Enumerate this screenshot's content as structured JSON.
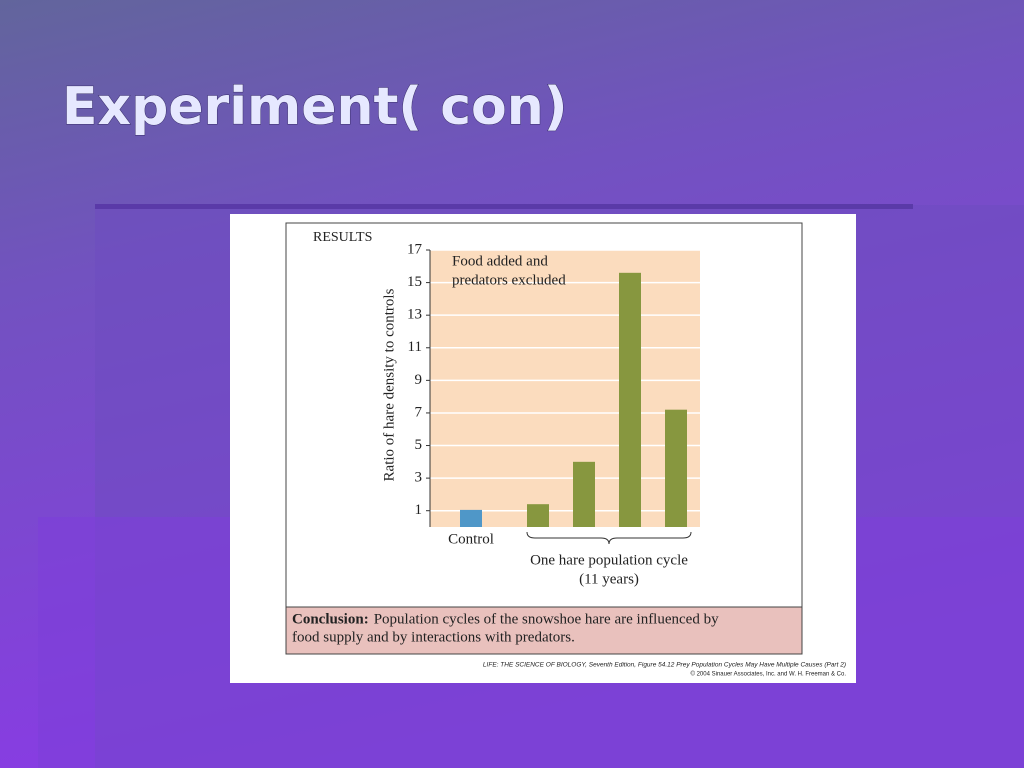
{
  "slide": {
    "title": "Experiment( con)"
  },
  "chart_data": {
    "type": "bar",
    "heading": "RESULTS",
    "y_label": "Ratio of hare density to controls",
    "annotation": [
      "Food added and",
      "predators excluded"
    ],
    "group_label": [
      "One hare population cycle",
      "(11 years)"
    ],
    "categories": [
      "Control",
      null,
      null,
      null,
      null
    ],
    "values": [
      1.05,
      1.4,
      4,
      15.6,
      7.2
    ],
    "colors": [
      "#4f97c8",
      "#87973f",
      "#87973f",
      "#87973f",
      "#87973f"
    ],
    "ylim": [
      0,
      17
    ],
    "yticks": [
      1,
      3,
      5,
      7,
      9,
      11,
      13,
      15,
      17
    ],
    "grid": true,
    "conclusion": {
      "label": "Conclusion:",
      "lines": [
        "Population cycles of the snowshoe hare are influenced by",
        "food supply and by interactions with predators."
      ]
    },
    "credit": [
      "LIFE: THE SCIENCE OF BIOLOGY, Seventh Edition, Figure 54.12 Prey Population Cycles May Have Multiple Causes (Part 2)",
      "© 2004 Sinauer Associates, Inc. and W. H. Freeman & Co."
    ]
  }
}
